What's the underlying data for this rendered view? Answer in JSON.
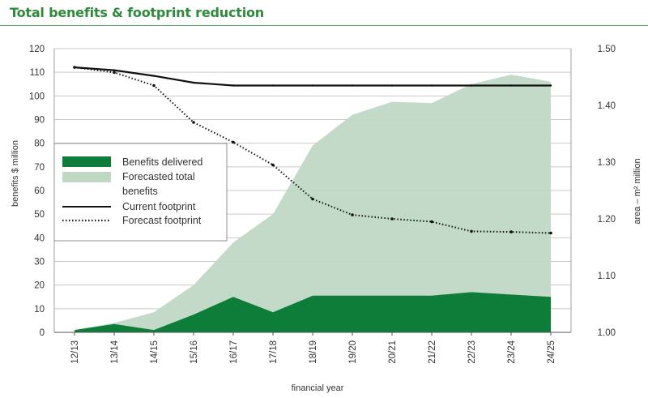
{
  "page": {
    "title": "Total benefits & footprint reduction"
  },
  "colors": {
    "title": "#2f8a3c",
    "benefits_delivered": "#0f7d3a",
    "forecasted_total": "#bfd8c4",
    "current_footprint": "#111111",
    "forecast_footprint": "#111111"
  },
  "chart_data": {
    "type": "area",
    "categories": [
      "12/13",
      "13/14",
      "14/15",
      "15/16",
      "16/17",
      "17/18",
      "18/19",
      "19/20",
      "20/21",
      "21/22",
      "22/23",
      "23/24",
      "24/25"
    ],
    "xlabel": "financial year",
    "ylabel": "benefits $ million",
    "y2label": "area – m² million",
    "ylim": [
      0,
      120
    ],
    "yticks": [
      0,
      10,
      20,
      30,
      40,
      50,
      60,
      70,
      80,
      90,
      100,
      110,
      120
    ],
    "y2lim": [
      1.0,
      1.5
    ],
    "y2ticks": [
      "1.00",
      "1.10",
      "1.20",
      "1.30",
      "1.40",
      "1.50"
    ],
    "grid": "horizontal",
    "legend_position": "left",
    "series": [
      {
        "name": "Benefits delivered",
        "kind": "area",
        "axis": "left",
        "values": [
          1,
          3.5,
          1,
          7.5,
          15,
          8.5,
          15.5,
          15.5,
          15.5,
          15.5,
          17,
          16,
          15
        ]
      },
      {
        "name": "Forecasted total benefits",
        "kind": "area",
        "axis": "left",
        "values": [
          1,
          4,
          8.5,
          20,
          38,
          50,
          79,
          92,
          97.5,
          97,
          105,
          109,
          106
        ]
      },
      {
        "name": "Current footprint",
        "kind": "line",
        "style": "solid",
        "axis": "right",
        "values": [
          1.467,
          1.462,
          1.452,
          1.44,
          1.435,
          1.435,
          1.435,
          1.435,
          1.435,
          1.435,
          1.435,
          1.435,
          1.435
        ]
      },
      {
        "name": "Forecast footprint",
        "kind": "line",
        "style": "dotted",
        "axis": "right",
        "values": [
          1.467,
          1.458,
          1.435,
          1.37,
          1.335,
          1.295,
          1.235,
          1.207,
          1.2,
          1.195,
          1.178,
          1.177,
          1.175
        ]
      }
    ]
  },
  "legend": {
    "items": [
      {
        "label": "Benefits delivered"
      },
      {
        "label": "Forecasted total",
        "label2": "benefits"
      },
      {
        "label": "Current footprint"
      },
      {
        "label": "Forecast footprint"
      }
    ]
  }
}
